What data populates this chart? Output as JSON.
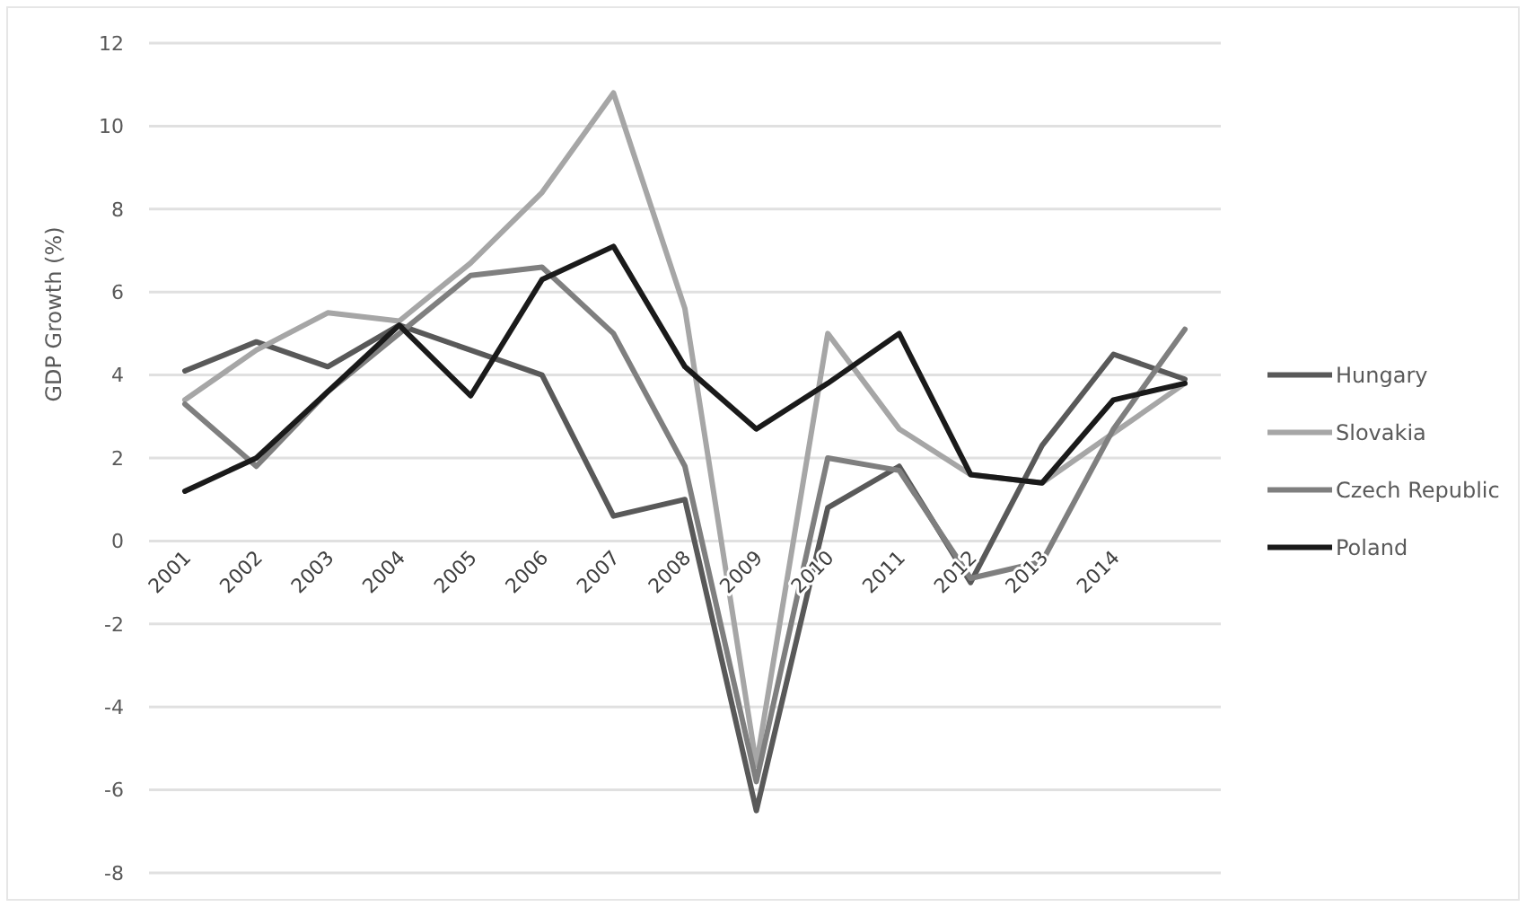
{
  "chart_data": {
    "type": "line",
    "ylabel": "GDP Growth (%)",
    "categories": [
      "2001",
      "2002",
      "2003",
      "2004",
      "2005",
      "2006",
      "2007",
      "2008",
      "2009",
      "2010",
      "2011",
      "2012",
      "2013",
      "2014",
      null
    ],
    "series": [
      {
        "name": "Hungary",
        "color": "#595959",
        "values": [
          4.1,
          4.8,
          4.2,
          5.2,
          4.6,
          4.0,
          0.6,
          1.0,
          -6.5,
          0.8,
          1.8,
          -1.0,
          2.3,
          4.5,
          3.9
        ]
      },
      {
        "name": "Slovakia",
        "color": "#a6a6a6",
        "values": [
          3.4,
          4.6,
          5.5,
          5.3,
          6.7,
          8.4,
          10.8,
          5.6,
          -5.4,
          5.0,
          2.7,
          1.6,
          1.4,
          2.6,
          3.8
        ]
      },
      {
        "name": "Czech Republic",
        "color": "#7f7f7f",
        "values": [
          3.3,
          1.8,
          3.6,
          5.0,
          6.4,
          6.6,
          5.0,
          1.8,
          -5.8,
          2.0,
          1.7,
          -0.9,
          -0.5,
          2.7,
          5.1
        ]
      },
      {
        "name": "Poland",
        "color": "#1a1a1a",
        "values": [
          1.2,
          2.0,
          3.6,
          5.2,
          3.5,
          6.3,
          7.1,
          4.2,
          2.7,
          3.8,
          5.0,
          1.6,
          1.4,
          3.4,
          3.8
        ]
      }
    ],
    "ylim": [
      -8,
      12
    ],
    "yticks": [
      -8,
      -6,
      -4,
      -2,
      0,
      2,
      4,
      6,
      8,
      10,
      12
    ],
    "grid": "y",
    "legend": "right",
    "marker": "none",
    "line_style": "solid"
  }
}
